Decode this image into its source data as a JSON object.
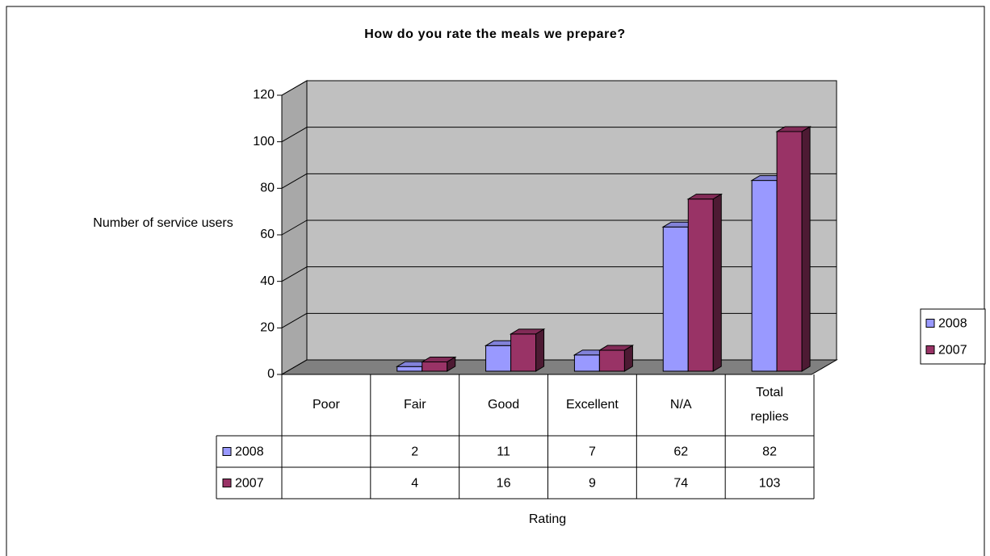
{
  "chart_data": {
    "type": "bar3d",
    "title": "How do you rate the meals we prepare?",
    "y_label": "Number of service users",
    "x_label": "Rating",
    "categories": [
      "Poor",
      "Fair",
      "Good",
      "Excellent",
      "N/A",
      "Total replies"
    ],
    "series": [
      {
        "name": "2008",
        "color": "#9999ff",
        "values": [
          null,
          2,
          11,
          7,
          62,
          82
        ]
      },
      {
        "name": "2007",
        "color": "#993366",
        "values": [
          null,
          4,
          16,
          9,
          74,
          103
        ]
      }
    ],
    "ylim": [
      0,
      120
    ],
    "yticks": [
      0,
      20,
      40,
      60,
      80,
      100,
      120
    ],
    "grid": true,
    "legend": "right",
    "data_table": true
  }
}
